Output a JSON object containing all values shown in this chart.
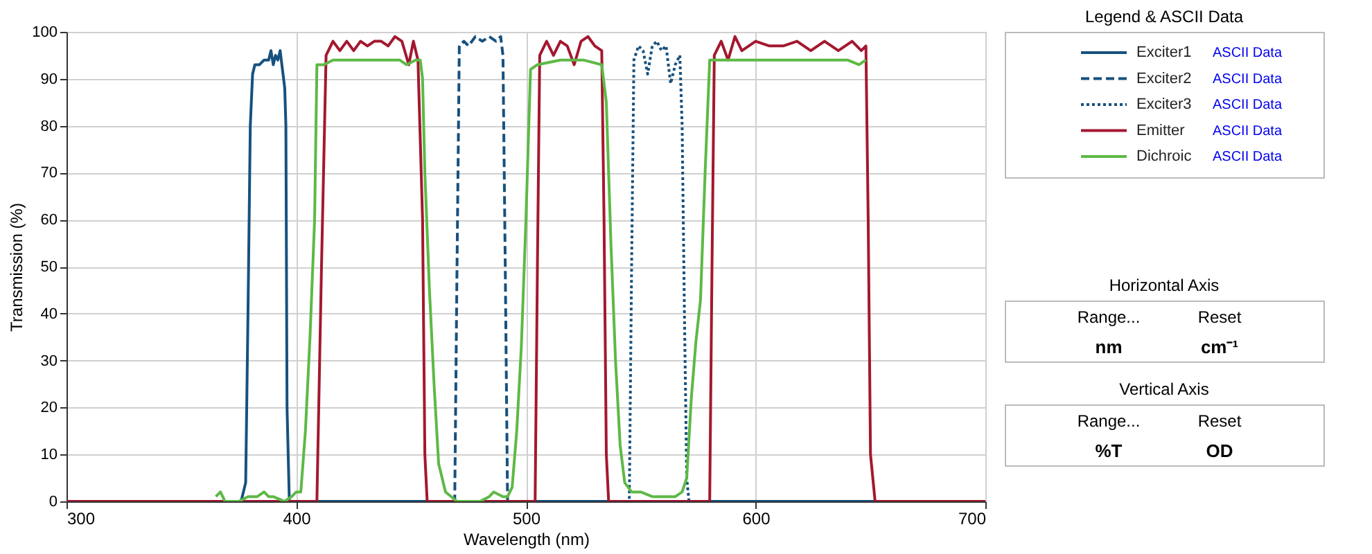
{
  "chart_data": {
    "type": "line",
    "xlabel": "Wavelength (nm)",
    "ylabel": "Transmission (%)",
    "legend_title": "Legend & ASCII Data",
    "legend": "right",
    "xlim": [
      300,
      700
    ],
    "xticks": [
      300,
      400,
      500,
      600,
      700
    ],
    "ylim": [
      0,
      100
    ],
    "yticks": [
      0,
      10,
      20,
      30,
      40,
      50,
      60,
      70,
      80,
      90,
      100
    ],
    "grid": true,
    "series": [
      {
        "name": "Exciter1",
        "color": "#17517e",
        "line_style": "solid",
        "x": [
          300,
          376,
          378,
          379,
          380,
          381,
          382,
          384,
          386,
          388,
          389,
          390,
          391,
          392,
          393,
          394,
          395,
          395.5,
          396,
          397,
          700
        ],
        "values": [
          0,
          0,
          4,
          40,
          80,
          91,
          93,
          93,
          94,
          94,
          96,
          93,
          95,
          94,
          96,
          92,
          88,
          80,
          20,
          0,
          0
        ]
      },
      {
        "name": "Exciter2",
        "color": "#17517e",
        "line_style": "dashed",
        "x": [
          300,
          469,
          470,
          471,
          473,
          475,
          478,
          481,
          484,
          487,
          489,
          490,
          491,
          492,
          700
        ],
        "values": [
          0,
          0,
          50,
          97,
          98,
          97,
          99,
          98,
          99,
          98,
          99,
          95,
          50,
          0,
          0
        ]
      },
      {
        "name": "Exciter3",
        "color": "#17517e",
        "line_style": "dotted",
        "x": [
          300,
          545,
          546,
          547,
          549,
          551,
          553,
          555,
          557,
          559,
          561,
          563,
          565,
          567,
          568,
          569,
          570,
          571,
          700
        ],
        "values": [
          0,
          0,
          50,
          94,
          97,
          96,
          91,
          97,
          98,
          96,
          97,
          89,
          93,
          95,
          80,
          40,
          5,
          0,
          0
        ]
      },
      {
        "name": "Emitter",
        "color": "#a3182f",
        "line_style": "solid",
        "x": [
          300,
          409,
          411,
          413,
          416,
          419,
          422,
          425,
          428,
          431,
          434,
          437,
          440,
          443,
          446,
          449,
          451,
          453,
          455,
          456,
          457,
          504,
          505,
          506,
          509,
          512,
          515,
          518,
          521,
          524,
          527,
          530,
          533,
          534,
          535,
          536,
          580,
          581,
          582,
          585,
          588,
          591,
          594,
          600,
          606,
          612,
          618,
          624,
          630,
          636,
          642,
          646,
          648,
          649,
          650,
          652,
          700
        ],
        "values": [
          0,
          0,
          50,
          95,
          98,
          96,
          98,
          96,
          98,
          97,
          98,
          98,
          97,
          99,
          98,
          93,
          98,
          94,
          60,
          10,
          0,
          0,
          50,
          95,
          98,
          95,
          98,
          97,
          93,
          98,
          99,
          97,
          96,
          60,
          10,
          0,
          0,
          50,
          95,
          98,
          94,
          99,
          96,
          98,
          97,
          97,
          98,
          96,
          98,
          96,
          98,
          96,
          97,
          60,
          10,
          0,
          0
        ]
      },
      {
        "name": "Dichroic",
        "color": "#5db946",
        "line_style": "solid",
        "x": [
          365,
          367,
          369,
          373,
          375,
          379,
          383,
          386,
          388,
          390,
          395,
          398,
          400,
          402,
          404,
          406,
          408,
          409,
          412,
          416,
          425,
          435,
          445,
          448,
          452,
          454,
          455,
          456,
          458,
          460,
          462,
          465,
          470,
          480,
          484,
          486,
          490,
          492,
          494,
          496,
          498,
          500,
          502,
          505,
          515,
          525,
          533,
          535,
          537,
          539,
          541,
          543,
          546,
          550,
          555,
          560,
          565,
          568,
          570,
          572,
          574,
          576,
          578,
          580,
          590,
          600,
          610,
          620,
          630,
          640,
          645,
          648
        ],
        "values": [
          1,
          2,
          0,
          0,
          0,
          1,
          1,
          2,
          1,
          1,
          0,
          1,
          2,
          2,
          15,
          35,
          60,
          93,
          93,
          94,
          94,
          94,
          94,
          93,
          94,
          94,
          90,
          70,
          45,
          25,
          8,
          2,
          0,
          0,
          1,
          2,
          1,
          1,
          3,
          15,
          33,
          60,
          92,
          93,
          94,
          94,
          93,
          85,
          55,
          30,
          12,
          4,
          2,
          2,
          1,
          1,
          1,
          2,
          5,
          22,
          34,
          43,
          70,
          94,
          94,
          94,
          94,
          94,
          94,
          94,
          93,
          94
        ]
      }
    ],
    "annotations": [
      "ASCII Data",
      "ASCII Data",
      "ASCII Data",
      "ASCII Data",
      "ASCII Data",
      "Horizontal Axis",
      "Range...",
      "Reset",
      "nm",
      "cm⁻¹",
      "Vertical Axis",
      "Range...",
      "Reset",
      "%T",
      "OD"
    ]
  }
}
